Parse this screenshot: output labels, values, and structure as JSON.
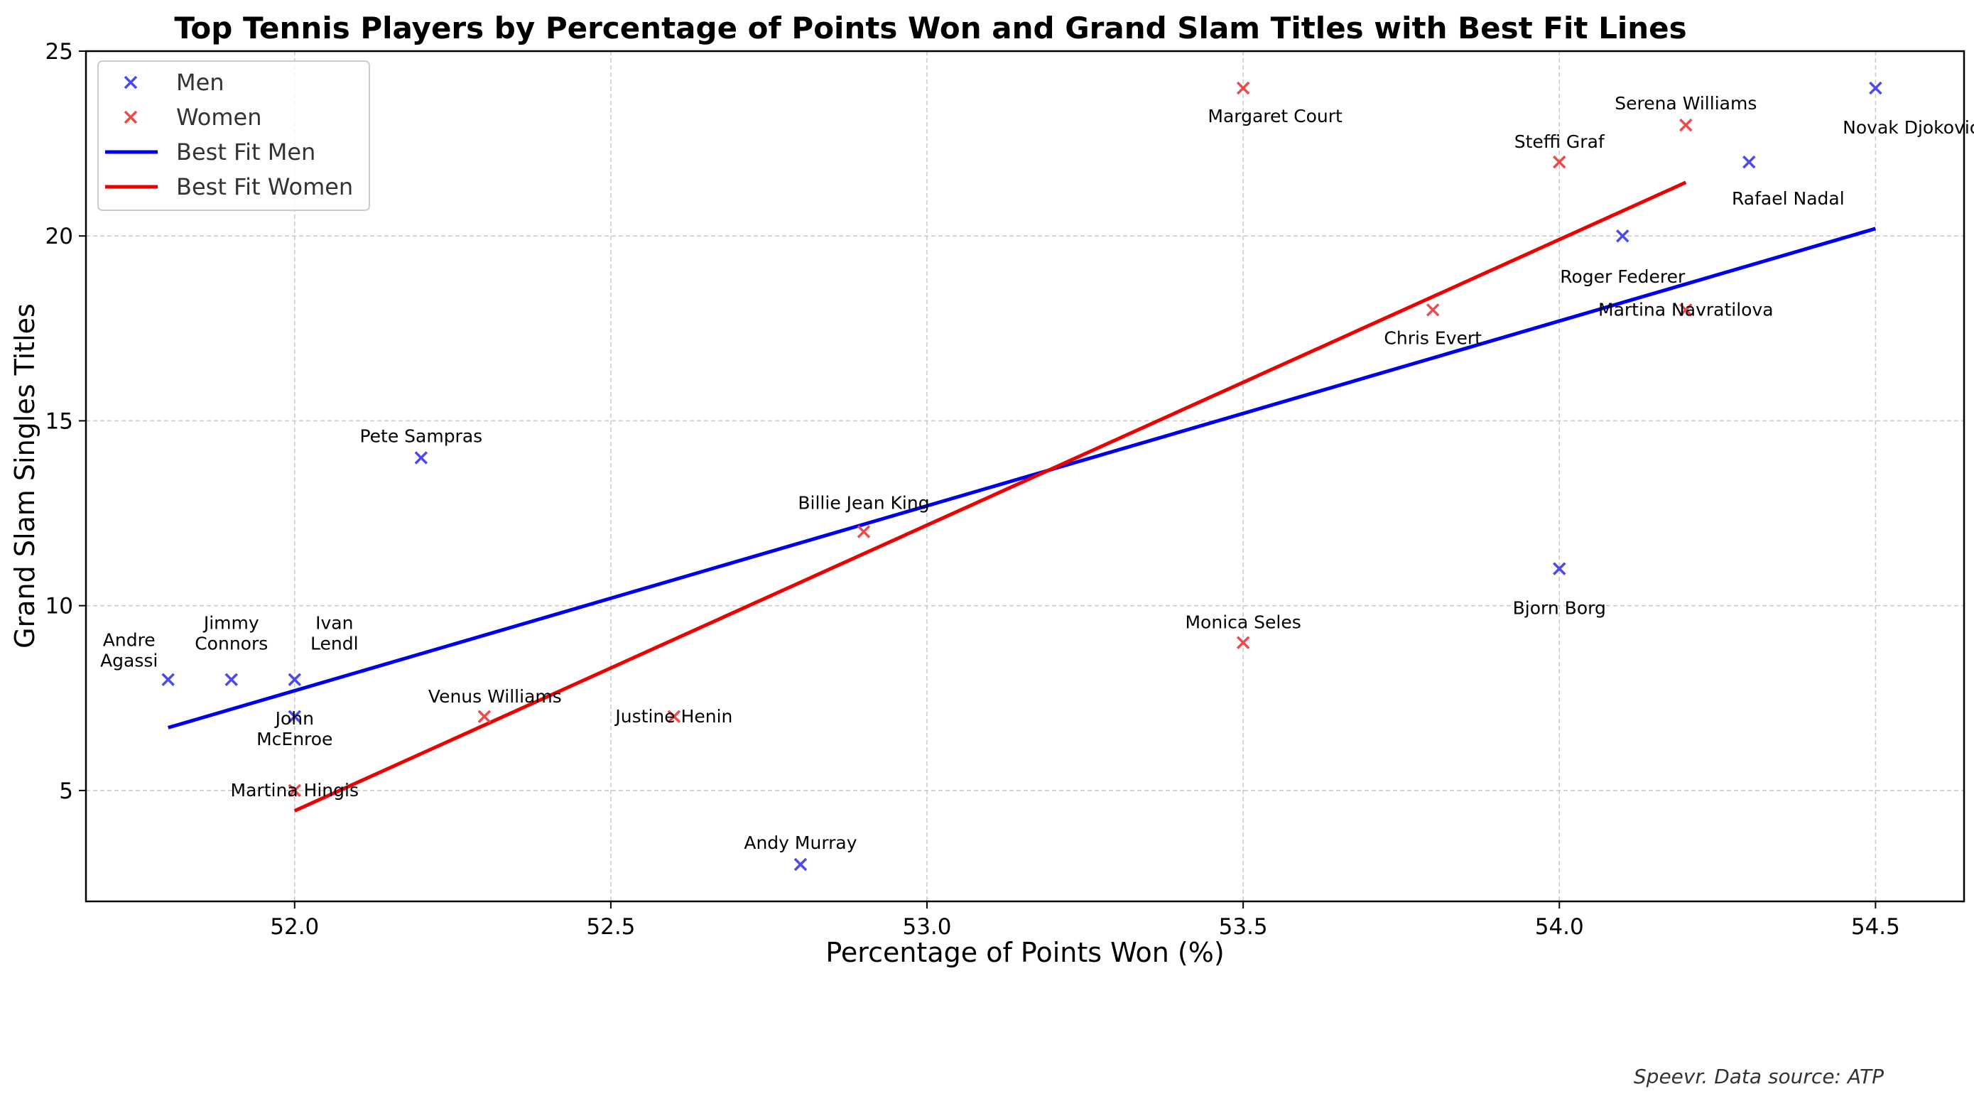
{
  "chart_data": {
    "type": "scatter",
    "title": "Top Tennis Players by Percentage of Points Won and Grand Slam Titles with Best Fit Lines",
    "xlabel": "Percentage of Points Won (%)",
    "ylabel": "Grand Slam Singles Titles",
    "xlim": [
      51.67,
      54.64
    ],
    "ylim": [
      2,
      25
    ],
    "xticks": [
      52.0,
      52.5,
      53.0,
      53.5,
      54.0,
      54.5
    ],
    "xtick_labels": [
      "52.0",
      "52.5",
      "53.0",
      "53.5",
      "54.0",
      "54.5"
    ],
    "yticks": [
      5,
      10,
      15,
      20,
      25
    ],
    "ytick_labels": [
      "5",
      "10",
      "15",
      "20",
      "25"
    ],
    "grid": true,
    "legend_position": "top-left",
    "legend": [
      "Men",
      "Women",
      "Best Fit Men",
      "Best Fit Women"
    ],
    "series": [
      {
        "name": "Men",
        "color": "#4a4aee",
        "marker": "x",
        "points": [
          {
            "label": "Andre\nAgassi",
            "x": 51.8,
            "y": 8
          },
          {
            "label": "Jimmy\nConnors",
            "x": 51.9,
            "y": 8
          },
          {
            "label": "Ivan\nLendl",
            "x": 52.0,
            "y": 8
          },
          {
            "label": "John\nMcEnroe",
            "x": 52.0,
            "y": 7
          },
          {
            "label": "Pete Sampras",
            "x": 52.2,
            "y": 14
          },
          {
            "label": "Andy Murray",
            "x": 52.8,
            "y": 3
          },
          {
            "label": "Bjorn Borg",
            "x": 54.0,
            "y": 11
          },
          {
            "label": "Roger Federer",
            "x": 54.1,
            "y": 20
          },
          {
            "label": "Rafael Nadal",
            "x": 54.3,
            "y": 22
          },
          {
            "label": "Novak Djokovic",
            "x": 54.5,
            "y": 24
          }
        ]
      },
      {
        "name": "Women",
        "color": "#ee4a4a",
        "marker": "x",
        "points": [
          {
            "label": "Martina Hingis",
            "x": 52.0,
            "y": 5
          },
          {
            "label": "Venus Williams",
            "x": 52.3,
            "y": 7
          },
          {
            "label": "Justine Henin",
            "x": 52.6,
            "y": 7
          },
          {
            "label": "Billie Jean King",
            "x": 52.9,
            "y": 12
          },
          {
            "label": "Margaret Court",
            "x": 53.5,
            "y": 24
          },
          {
            "label": "Monica Seles",
            "x": 53.5,
            "y": 9
          },
          {
            "label": "Chris Evert",
            "x": 53.8,
            "y": 18
          },
          {
            "label": "Steffi Graf",
            "x": 54.0,
            "y": 22
          },
          {
            "label": "Serena Williams",
            "x": 54.2,
            "y": 23
          },
          {
            "label": "Martina Navratilova",
            "x": 54.2,
            "y": 18
          }
        ]
      }
    ],
    "fit_lines": [
      {
        "name": "Best Fit Men",
        "color": "#0000ee",
        "x": [
          51.8,
          54.5
        ],
        "y": [
          6.7,
          20.2
        ]
      },
      {
        "name": "Best Fit Women",
        "color": "#ee0000",
        "x": [
          52.0,
          54.2
        ],
        "y": [
          4.45,
          21.45
        ]
      }
    ],
    "footer": "Speevr. Data source: ATP"
  }
}
